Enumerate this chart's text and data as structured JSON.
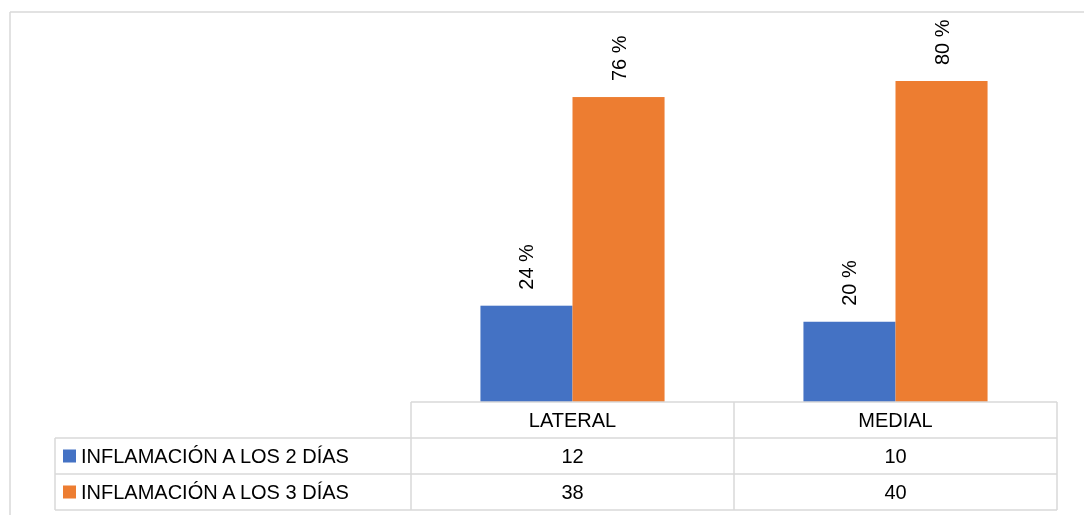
{
  "chart_data": {
    "type": "bar",
    "categories": [
      "LATERAL",
      "MEDIAL"
    ],
    "series": [
      {
        "name": "INFLAMACIÓN A LOS 2 DÍAS",
        "color": "#4472c4",
        "values": [
          24,
          20
        ],
        "value_labels": [
          "24 %",
          "20 %"
        ]
      },
      {
        "name": "INFLAMACIÓN A LOS 3 DÍAS",
        "color": "#ed7d31",
        "values": [
          76,
          80
        ],
        "value_labels": [
          "76 %",
          "80 %"
        ]
      }
    ],
    "annotations": [
      "12",
      "10",
      "38",
      "40"
    ],
    "legend": "bottom left"
  }
}
